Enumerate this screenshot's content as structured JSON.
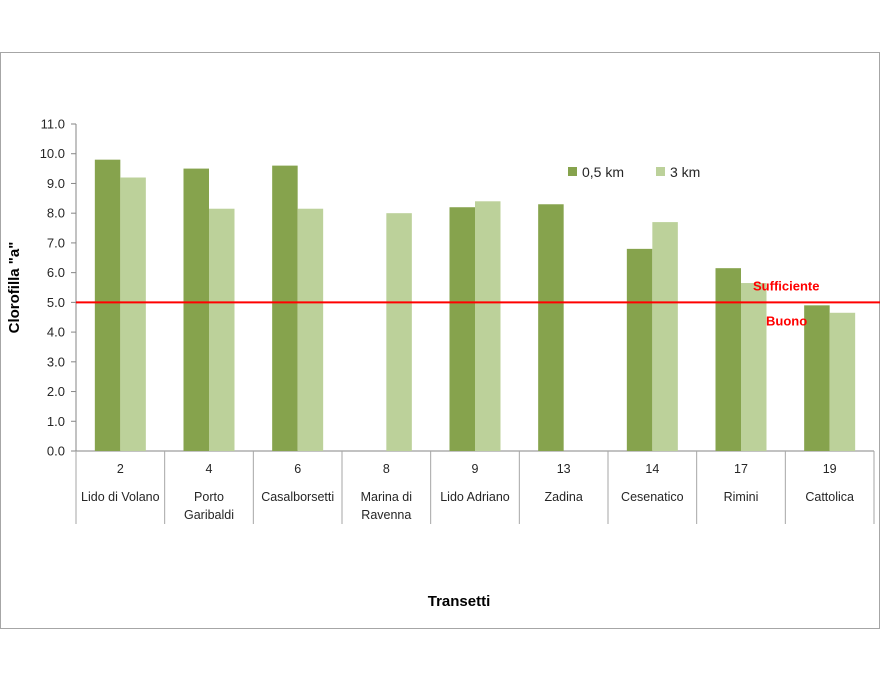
{
  "chart_data": {
    "type": "bar",
    "xlabel": "Transetti",
    "ylabel": "Clorofilla \"a\"",
    "ylim": [
      0,
      11
    ],
    "yticks": [
      "0.0",
      "1.0",
      "2.0",
      "3.0",
      "4.0",
      "5.0",
      "6.0",
      "7.0",
      "8.0",
      "9.0",
      "10.0",
      "11.0"
    ],
    "categories": [
      {
        "num": "2",
        "name": [
          "Lido di Volano"
        ]
      },
      {
        "num": "4",
        "name": [
          "Porto",
          "Garibaldi"
        ]
      },
      {
        "num": "6",
        "name": [
          "Casalborsetti"
        ]
      },
      {
        "num": "8",
        "name": [
          "Marina di",
          "Ravenna"
        ]
      },
      {
        "num": "9",
        "name": [
          "Lido Adriano"
        ]
      },
      {
        "num": "13",
        "name": [
          "Zadina"
        ]
      },
      {
        "num": "14",
        "name": [
          "Cesenatico"
        ]
      },
      {
        "num": "17",
        "name": [
          "Rimini"
        ]
      },
      {
        "num": "19",
        "name": [
          "Cattolica"
        ]
      }
    ],
    "series": [
      {
        "name": "0,5 km",
        "color": "#86a34d",
        "values": [
          9.8,
          9.5,
          9.6,
          null,
          8.2,
          8.3,
          6.8,
          6.15,
          4.9
        ]
      },
      {
        "name": "3 km",
        "color": "#bcd19a",
        "values": [
          9.2,
          8.15,
          8.15,
          8.0,
          8.4,
          null,
          7.7,
          5.65,
          4.65
        ]
      }
    ],
    "threshold": {
      "value": 5.0,
      "color": "#ff0000",
      "label_above": "Sufficiente",
      "label_below": "Buono"
    },
    "legend_position": "top-right"
  }
}
